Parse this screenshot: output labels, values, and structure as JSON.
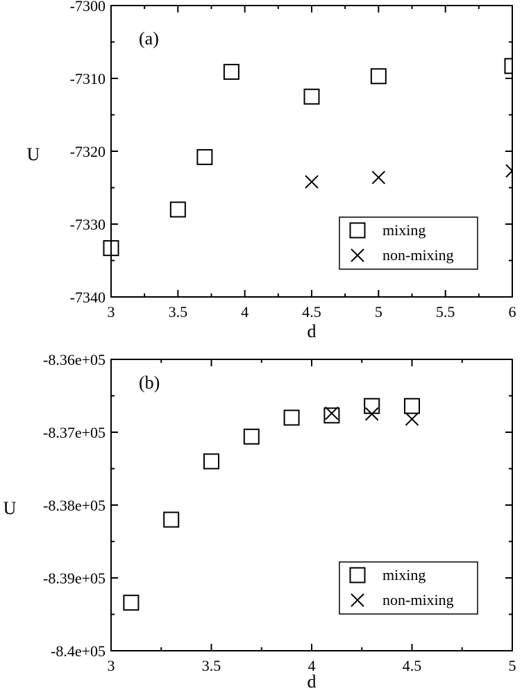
{
  "chart_data": [
    {
      "type": "scatter",
      "panel_label": "(a)",
      "xlabel": "d",
      "ylabel": "U",
      "xlim": [
        3,
        6
      ],
      "ylim": [
        -7340,
        -7300
      ],
      "x_ticks": [
        3,
        3.5,
        4,
        4.5,
        5,
        5.5,
        6
      ],
      "x_tick_labels": [
        "3",
        "3.5",
        "4",
        "4.5",
        "5",
        "5.5",
        "6"
      ],
      "y_ticks": [
        -7340,
        -7330,
        -7320,
        -7310,
        -7300
      ],
      "y_tick_labels": [
        "-7340",
        "-7330",
        "-7320",
        "-7310",
        "-7300"
      ],
      "legend_position": "bottom-right",
      "series": [
        {
          "name": "mixing",
          "marker": "square",
          "points": [
            [
              3,
              -7333.3
            ],
            [
              3.5,
              -7328.0
            ],
            [
              3.7,
              -7320.8
            ],
            [
              3.9,
              -7309.1
            ],
            [
              4.5,
              -7312.5
            ],
            [
              5,
              -7309.7
            ],
            [
              6,
              -7308.3
            ]
          ]
        },
        {
          "name": "non-mixing",
          "marker": "x",
          "points": [
            [
              4.5,
              -7324.2
            ],
            [
              5,
              -7323.6
            ],
            [
              6,
              -7322.7
            ]
          ]
        }
      ]
    },
    {
      "type": "scatter",
      "panel_label": "(b)",
      "xlabel": "d",
      "ylabel": "U",
      "xlim": [
        3,
        5
      ],
      "ylim": [
        -840000,
        -836000
      ],
      "x_ticks": [
        3,
        3.5,
        4,
        4.5,
        5
      ],
      "x_tick_labels": [
        "3",
        "3.5",
        "4",
        "4.5",
        "5"
      ],
      "y_ticks": [
        -840000,
        -839000,
        -838000,
        -837000,
        -836000
      ],
      "y_tick_labels": [
        "-8.4e+05",
        "-8.39e+05",
        "-8.38e+05",
        "-8.37e+05",
        "-8.36e+05"
      ],
      "legend_position": "bottom-right",
      "series": [
        {
          "name": "mixing",
          "marker": "square",
          "points": [
            [
              3.1,
              -839340
            ],
            [
              3.3,
              -838200
            ],
            [
              3.5,
              -837400
            ],
            [
              3.7,
              -837060
            ],
            [
              3.9,
              -836800
            ],
            [
              4.1,
              -836770
            ],
            [
              4.3,
              -836640
            ],
            [
              4.5,
              -836640
            ]
          ]
        },
        {
          "name": "non-mixing",
          "marker": "x",
          "points": [
            [
              4.1,
              -836740
            ],
            [
              4.3,
              -836750
            ],
            [
              4.5,
              -836820
            ]
          ]
        }
      ]
    }
  ]
}
